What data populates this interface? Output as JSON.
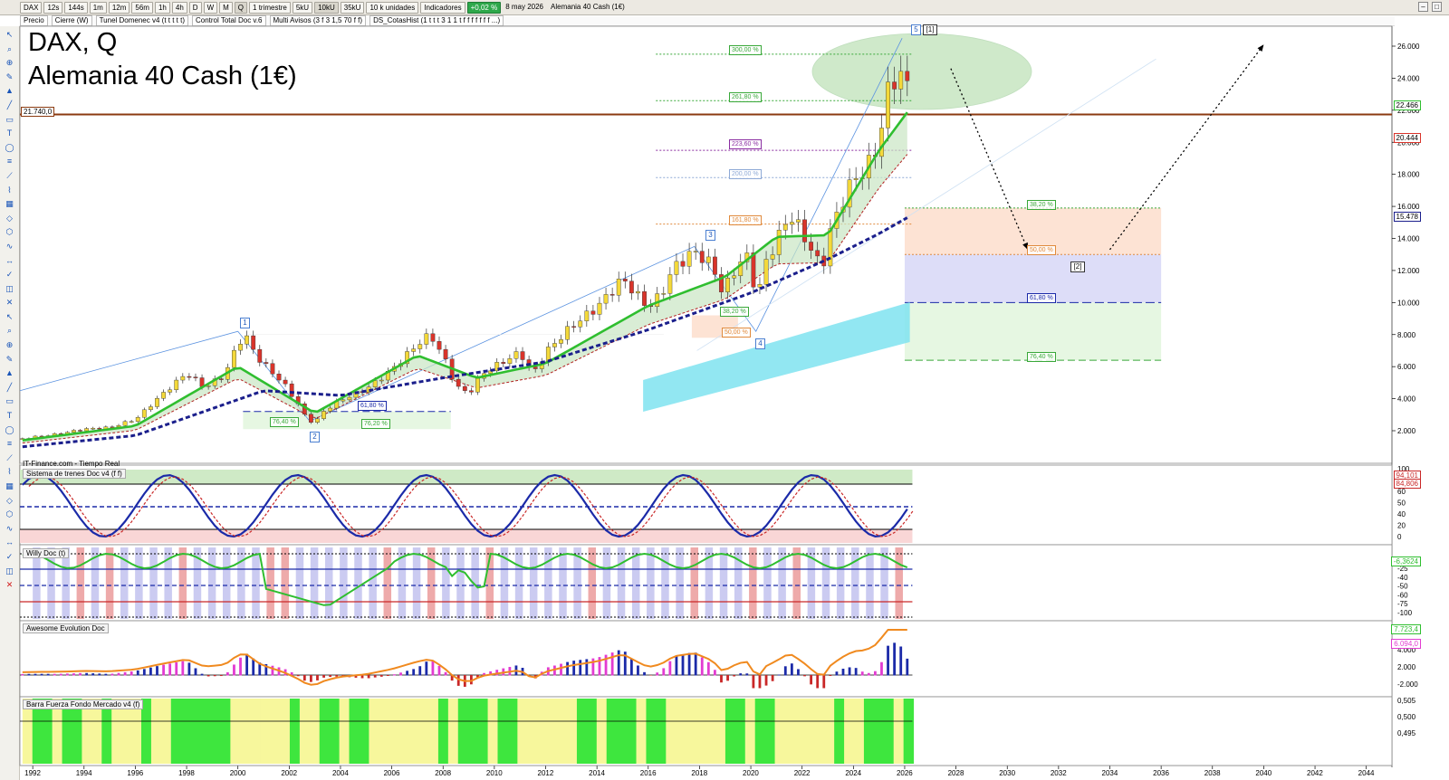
{
  "toolbar": {
    "symbol": "DAX",
    "timeframes": [
      "12s",
      "144s",
      "1m",
      "12m",
      "56m",
      "1h",
      "4h",
      "D",
      "W",
      "M",
      "Q"
    ],
    "period": "1 trimestre",
    "units_buttons": [
      "5kU",
      "10kU",
      "35kU"
    ],
    "units_select": "10 k unidades",
    "indicators": "Indicadores",
    "change_pct": "+0,02 %",
    "date": "8 may 2026",
    "instrument": "Alemania 40 Cash (1€)"
  },
  "overlays": {
    "items": [
      "Precio",
      "Cierre (W)",
      "Tunel Domenec v4 (t t t t t)",
      "Control Total Doc v.6",
      "Multi Avisos (3 f 3 1,5 70 f f)",
      "DS_CotasHist (1 t t t 3 1 1 t f f f f f f f ...)"
    ]
  },
  "header": {
    "title_line1": "DAX, Q",
    "title_line2": "Alemania 40 Cash (1€)",
    "source": "IT-Finance.com - Tiempo Real"
  },
  "price_tags": {
    "support_left": "21.740,0",
    "last": "22.466",
    "band_upper": "20.444",
    "ma_slow": "15.478"
  },
  "waves": [
    "1",
    "2",
    "3",
    "4",
    "5",
    "[1]",
    "[2]"
  ],
  "fib_labels": {
    "upper": [
      "300,00 %",
      "261,80 %",
      "223,60 %",
      "200,00 %",
      "161,80 %"
    ],
    "projection": [
      "38,20 %",
      "50,00 %",
      "61,80 %",
      "76,40 %"
    ],
    "wave2": [
      "61,80 %",
      "76,40 %",
      "76,20 %"
    ],
    "wave4": [
      "38,20 %",
      "50,00 %"
    ]
  },
  "panels": {
    "trenes": {
      "title": "Sistema de trenes Doc v4 (f f)",
      "axis": [
        "100",
        "80",
        "60",
        "50",
        "40",
        "20",
        "0"
      ],
      "tags": [
        "94,101",
        "84,806"
      ]
    },
    "willy": {
      "title": "Willy Doc (t)",
      "axis": [
        "-25",
        "-40",
        "-50",
        "-60",
        "-75",
        "-100"
      ],
      "tag": "-6,3624"
    },
    "awesome": {
      "title": "Awesome Evolution Doc",
      "axis": [
        "4.000",
        "2.000",
        "-2.000"
      ],
      "tags": [
        "7.723,4",
        "6.094,0"
      ]
    },
    "barra": {
      "title": "Barra Fuerza Fondo Mercado v4 (f)",
      "axis": [
        "0,505",
        "0,500",
        "0,495"
      ]
    }
  },
  "colors": {
    "bull_candle": "#f4d93a",
    "bear_candle": "#d9342b",
    "ema_fast": "#2fbe2f",
    "ema_slow": "#1b1f8c",
    "support": "#8b3a10",
    "projection_up": "#fde0cf",
    "projection_mid": "#d9d9f7",
    "projection_low": "#dff5dc",
    "cyan_band": "#7fe3f0"
  },
  "chart_data": {
    "type": "candlestick",
    "title": "DAX, Q",
    "subtitle": "Alemania 40 Cash (1€)",
    "xlabel": "",
    "ylabel": "",
    "x_ticks": [
      "1992",
      "1994",
      "1996",
      "1998",
      "2000",
      "2002",
      "2004",
      "2006",
      "2008",
      "2010",
      "2012",
      "2014",
      "2016",
      "2018",
      "2020",
      "2022",
      "2024",
      "2026",
      "2028",
      "2030",
      "2032",
      "2034",
      "2036",
      "2038",
      "2040",
      "2042",
      "2044"
    ],
    "y_ticks": [
      "2.000",
      "4.000",
      "6.000",
      "8.000",
      "10.000",
      "12.000",
      "14.000",
      "16.000",
      "18.000",
      "20.000",
      "22.000",
      "24.000",
      "26.000"
    ],
    "ylim": [
      0,
      27500
    ],
    "xlim": [
      1991.5,
      2045.0
    ],
    "series": [
      {
        "name": "close",
        "points": [
          [
            1991.6,
            1500
          ],
          [
            1992.0,
            1600
          ],
          [
            1993.0,
            1800
          ],
          [
            1994.0,
            2100
          ],
          [
            1995.0,
            2200
          ],
          [
            1996.0,
            2700
          ],
          [
            1997.0,
            4200
          ],
          [
            1998.0,
            5600
          ],
          [
            1998.7,
            4700
          ],
          [
            1999.5,
            5500
          ],
          [
            2000.0,
            7500
          ],
          [
            2000.3,
            7900
          ],
          [
            2000.8,
            6500
          ],
          [
            2001.3,
            5700
          ],
          [
            2001.8,
            4900
          ],
          [
            2002.3,
            3800
          ],
          [
            2002.7,
            2700
          ],
          [
            2003.0,
            2500
          ],
          [
            2003.4,
            3300
          ],
          [
            2004.0,
            3900
          ],
          [
            2005.0,
            4600
          ],
          [
            2006.0,
            5800
          ],
          [
            2007.0,
            7400
          ],
          [
            2007.5,
            8000
          ],
          [
            2008.0,
            6700
          ],
          [
            2008.5,
            4800
          ],
          [
            2009.0,
            4300
          ],
          [
            2009.5,
            5500
          ],
          [
            2010.0,
            6000
          ],
          [
            2011.0,
            6900
          ],
          [
            2011.5,
            5500
          ],
          [
            2012.0,
            6900
          ],
          [
            2013.0,
            8500
          ],
          [
            2014.0,
            9700
          ],
          [
            2015.0,
            11500
          ],
          [
            2015.7,
            10200
          ],
          [
            2016.0,
            9700
          ],
          [
            2016.5,
            10500
          ],
          [
            2017.0,
            12200
          ],
          [
            2017.8,
            13200
          ],
          [
            2018.5,
            12300
          ],
          [
            2018.9,
            10600
          ],
          [
            2019.5,
            12400
          ],
          [
            2020.0,
            13000
          ],
          [
            2020.2,
            9600
          ],
          [
            2020.5,
            12300
          ],
          [
            2021.0,
            13800
          ],
          [
            2021.5,
            15500
          ],
          [
            2022.0,
            14400
          ],
          [
            2022.5,
            12800
          ],
          [
            2022.8,
            12200
          ],
          [
            2023.0,
            14000
          ],
          [
            2023.5,
            16100
          ],
          [
            2024.0,
            17700
          ],
          [
            2024.5,
            18300
          ],
          [
            2025.0,
            20000
          ],
          [
            2025.3,
            23000
          ],
          [
            2025.6,
            24000
          ],
          [
            2025.9,
            24200
          ],
          [
            2026.1,
            23500
          ],
          [
            2026.3,
            22466
          ]
        ]
      },
      {
        "name": "ema_fast",
        "points": [
          [
            1991.6,
            1400
          ],
          [
            1996,
            2300
          ],
          [
            2000,
            6000
          ],
          [
            2003,
            3100
          ],
          [
            2007,
            6700
          ],
          [
            2009.3,
            5300
          ],
          [
            2012,
            6200
          ],
          [
            2016,
            9800
          ],
          [
            2019,
            11600
          ],
          [
            2021,
            14100
          ],
          [
            2023,
            14200
          ],
          [
            2025,
            19500
          ],
          [
            2026.3,
            22300
          ]
        ]
      },
      {
        "name": "ema_slow",
        "points": [
          [
            1991.6,
            1000
          ],
          [
            1996,
            1700
          ],
          [
            2001,
            4500
          ],
          [
            2004,
            4200
          ],
          [
            2008,
            5300
          ],
          [
            2012,
            6300
          ],
          [
            2016,
            8300
          ],
          [
            2020,
            10600
          ],
          [
            2023,
            12700
          ],
          [
            2025,
            14300
          ],
          [
            2026.3,
            15478
          ]
        ]
      }
    ],
    "horizontal_line": 21740,
    "projection_zone": {
      "x": [
        2026.0,
        2036.0
      ],
      "levels": {
        "38.2": 15900,
        "50": 13000,
        "61.8": 10000,
        "76.4": 6400
      }
    },
    "forecast_path": [
      [
        2027.8,
        24600
      ],
      [
        2030.8,
        13300
      ],
      [
        2034.0,
        13300
      ],
      [
        2040.0,
        26100
      ]
    ]
  }
}
